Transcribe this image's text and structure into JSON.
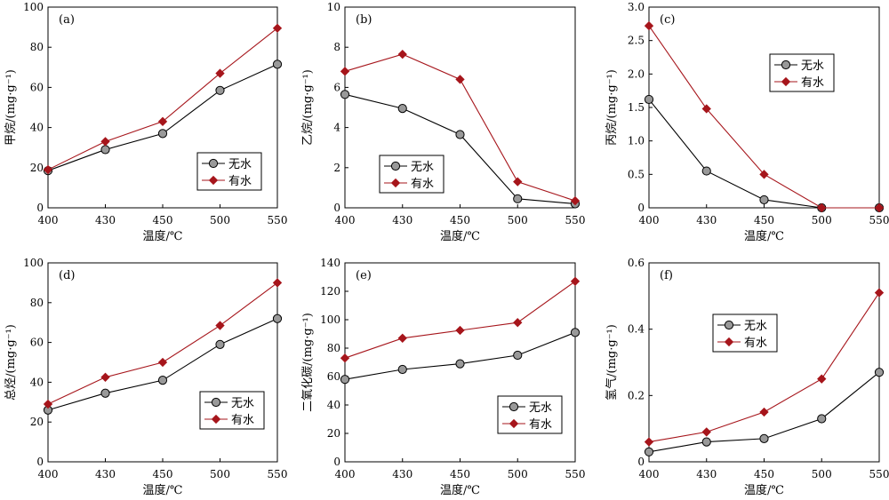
{
  "colors": {
    "no_water": "#999999",
    "with_water": "#a6151b",
    "line_no_water": "#000000",
    "line_with_water": "#a6151b"
  },
  "chart_data": [
    {
      "type": "line",
      "tag": "(a)",
      "x": [
        400,
        430,
        450,
        500,
        550
      ],
      "xlabel": "温度/℃",
      "ylabel": "甲烷/(mg·g⁻¹)",
      "ylim": [
        0,
        100
      ],
      "yticks": [
        "0",
        "20",
        "40",
        "60",
        "80",
        "100"
      ],
      "xticks": [
        "400",
        "430",
        "450",
        "500",
        "550"
      ],
      "legend_position": "bottom-right",
      "series": [
        {
          "name": "无水",
          "marker": "circle",
          "values": [
            18.5,
            29,
            37,
            58.5,
            71.5
          ]
        },
        {
          "name": "有水",
          "marker": "diamond",
          "values": [
            19,
            33,
            43,
            67,
            89.5
          ]
        }
      ]
    },
    {
      "type": "line",
      "tag": "(b)",
      "x": [
        400,
        430,
        450,
        500,
        550
      ],
      "xlabel": "温度/℃",
      "ylabel": "乙烷/(mg·g⁻¹)",
      "ylim": [
        0,
        10
      ],
      "yticks": [
        "0",
        "2",
        "4",
        "6",
        "8",
        "10"
      ],
      "xticks": [
        "400",
        "430",
        "450",
        "500",
        "550"
      ],
      "legend_position": "bottom-right",
      "series": [
        {
          "name": "无水",
          "marker": "circle",
          "values": [
            5.65,
            4.95,
            3.65,
            0.45,
            0.2
          ]
        },
        {
          "name": "有水",
          "marker": "diamond",
          "values": [
            6.8,
            7.65,
            6.4,
            1.3,
            0.35
          ]
        }
      ]
    },
    {
      "type": "line",
      "tag": "(c)",
      "x": [
        400,
        430,
        450,
        500,
        550
      ],
      "xlabel": "温度/℃",
      "ylabel": "丙烷/(mg·g⁻¹)",
      "ylim": [
        0,
        3.0
      ],
      "yticks": [
        "0",
        "0.5",
        "1.0",
        "1.5",
        "2.0",
        "2.5",
        "3.0"
      ],
      "xticks": [
        "400",
        "430",
        "450",
        "500",
        "550"
      ],
      "legend_position": "top-right",
      "series": [
        {
          "name": "无水",
          "marker": "circle",
          "values": [
            1.62,
            0.55,
            0.12,
            0.0,
            0.0
          ]
        },
        {
          "name": "有水",
          "marker": "diamond",
          "values": [
            2.72,
            1.48,
            0.5,
            0.0,
            0.0
          ]
        }
      ]
    },
    {
      "type": "line",
      "tag": "(d)",
      "x": [
        400,
        430,
        450,
        500,
        550
      ],
      "xlabel": "温度/℃",
      "ylabel": "总烃/(mg·g⁻¹)",
      "ylim": [
        0,
        100
      ],
      "yticks": [
        "0",
        "20",
        "40",
        "60",
        "80",
        "100"
      ],
      "xticks": [
        "400",
        "430",
        "450",
        "500",
        "550"
      ],
      "legend_position": "bottom-right",
      "series": [
        {
          "name": "无水",
          "marker": "circle",
          "values": [
            26,
            34.5,
            41,
            59,
            72
          ]
        },
        {
          "name": "有水",
          "marker": "diamond",
          "values": [
            29,
            42.5,
            50,
            68.5,
            90
          ]
        }
      ]
    },
    {
      "type": "line",
      "tag": "(e)",
      "x": [
        400,
        430,
        450,
        500,
        550
      ],
      "xlabel": "温度/℃",
      "ylabel": "二氧化碳/(mg·g⁻¹)",
      "ylim": [
        0,
        140
      ],
      "yticks": [
        "0",
        "20",
        "40",
        "60",
        "80",
        "100",
        "120",
        "140"
      ],
      "xticks": [
        "400",
        "430",
        "450",
        "500",
        "550"
      ],
      "legend_position": "bottom-right",
      "series": [
        {
          "name": "无水",
          "marker": "circle",
          "values": [
            58,
            65,
            69,
            75,
            91
          ]
        },
        {
          "name": "有水",
          "marker": "diamond",
          "values": [
            73,
            87,
            92.5,
            98,
            127
          ]
        }
      ]
    },
    {
      "type": "line",
      "tag": "(f)",
      "x": [
        400,
        430,
        450,
        500,
        550
      ],
      "xlabel": "温度/℃",
      "ylabel": "氢气/(mg·g⁻¹)",
      "ylim": [
        0,
        0.6
      ],
      "yticks": [
        "0",
        "0.2",
        "0.4",
        "0.6"
      ],
      "xticks": [
        "400",
        "430",
        "450",
        "500",
        "550"
      ],
      "legend_position": "top-left",
      "series": [
        {
          "name": "无水",
          "marker": "circle",
          "values": [
            0.03,
            0.06,
            0.07,
            0.13,
            0.27
          ]
        },
        {
          "name": "有水",
          "marker": "diamond",
          "values": [
            0.06,
            0.09,
            0.15,
            0.25,
            0.51
          ]
        }
      ]
    }
  ]
}
